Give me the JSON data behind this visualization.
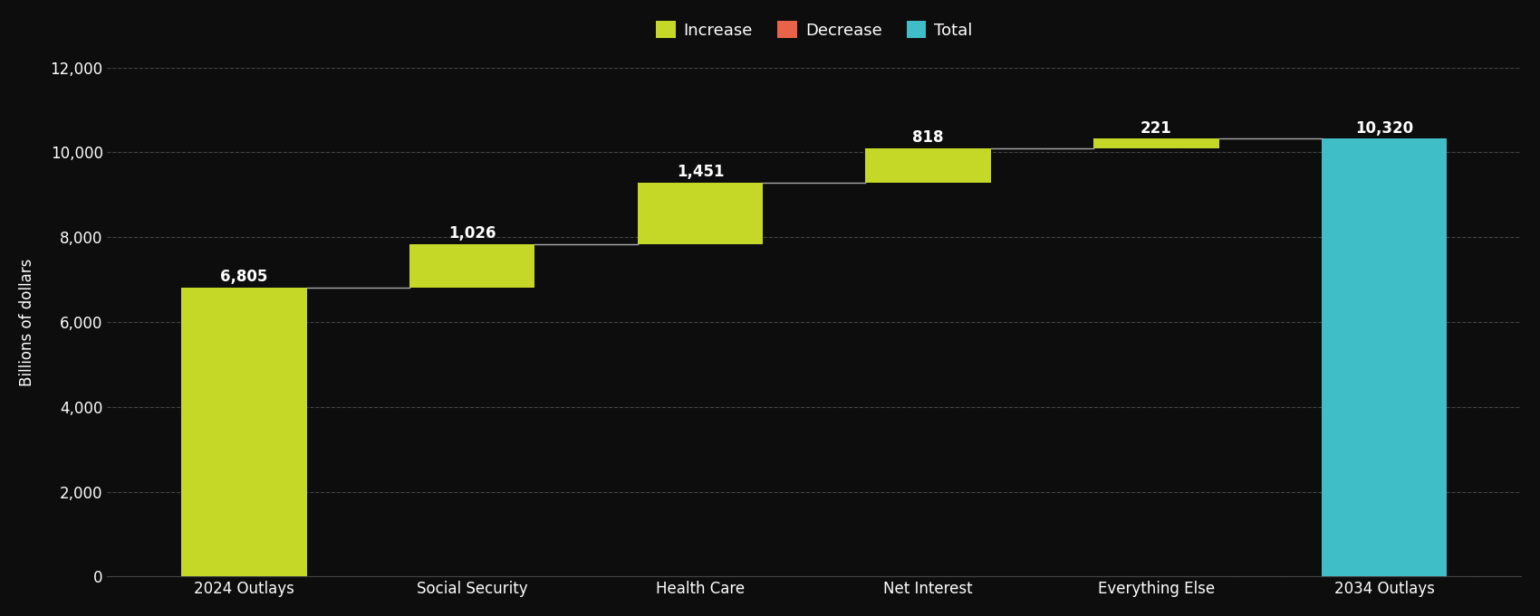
{
  "categories": [
    "2024 Outlays",
    "Social Security",
    "Health Care",
    "Net Interest",
    "Everything Else",
    "2034 Outlays"
  ],
  "values": [
    6805,
    1026,
    1451,
    818,
    221,
    10320
  ],
  "bar_types": [
    "total",
    "increase",
    "increase",
    "increase",
    "increase",
    "total"
  ],
  "bottoms": [
    0,
    6805,
    7831,
    9282,
    10100,
    0
  ],
  "labels": [
    "6,805",
    "1,026",
    "1,451",
    "818",
    "221",
    "10,320"
  ],
  "label_offsets": [
    80,
    80,
    80,
    80,
    80,
    80
  ],
  "colors": {
    "increase": "#c5d827",
    "decrease": "#e8634a",
    "total_start": "#c5d827",
    "total_end": "#40bec8"
  },
  "background_color": "#0d0d0d",
  "ylabel": "Billions of dollars",
  "ylim": [
    0,
    12000
  ],
  "yticks": [
    0,
    2000,
    4000,
    6000,
    8000,
    10000,
    12000
  ],
  "legend": [
    {
      "label": "Increase",
      "color": "#c5d827"
    },
    {
      "label": "Decrease",
      "color": "#e8634a"
    },
    {
      "label": "Total",
      "color": "#40bec8"
    }
  ],
  "grid_color": "#444444",
  "connector_color": "#aaaaaa",
  "bar_colors_list": [
    "#c5d827",
    "#c5d827",
    "#c5d827",
    "#c5d827",
    "#c5d827",
    "#40bec8"
  ]
}
